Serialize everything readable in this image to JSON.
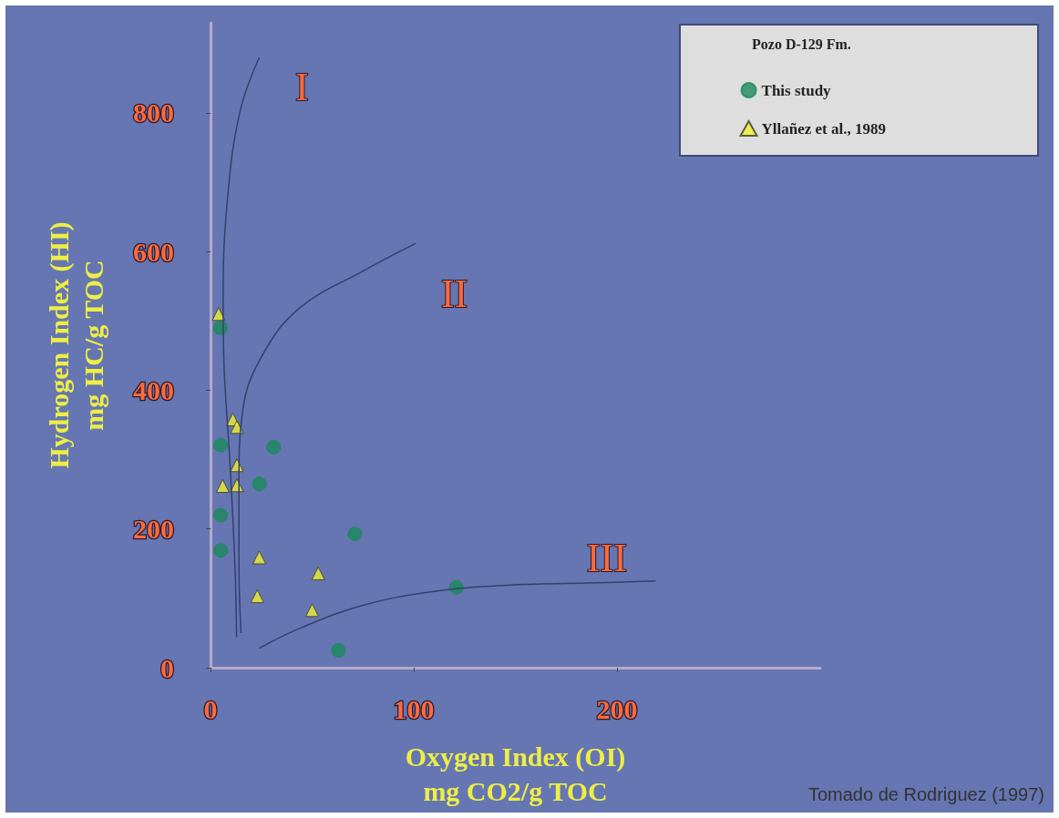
{
  "chart_data": {
    "type": "scatter",
    "xlabel": "Oxygen Index (OI)\nmg CO2/g TOC",
    "ylabel": "Hydrogen Index (HI)\nmg HC/g TOC",
    "legend_title": "Pozo D-129 Fm.",
    "legend": "top right",
    "grid": false,
    "xlim": [
      0,
      300
    ],
    "xticks": [
      0,
      100,
      200
    ],
    "ylim": [
      0,
      930
    ],
    "yticks": [
      0,
      200,
      400,
      600,
      800
    ],
    "series": [
      {
        "name": "This study",
        "color": "#1a8a5a",
        "marker": "circle",
        "x": [
          4.9,
          5,
          31,
          24,
          5,
          5,
          71,
          121,
          63
        ],
        "values": [
          490,
          321,
          318,
          265,
          220,
          169,
          193,
          116,
          25
        ]
      },
      {
        "name": "Yllañez et al., 1989",
        "color": "#f0f030",
        "marker": "triangle",
        "x": [
          4,
          11,
          13,
          13,
          6,
          13,
          24,
          23,
          53,
          50
        ],
        "values": [
          510,
          358,
          347,
          292,
          262,
          263,
          159,
          103,
          136,
          83
        ]
      },
      {
        "type": "line",
        "color": "#34406e",
        "marker": "none",
        "x": [
          24,
          14.6,
          8.4,
          6.2,
          6.6,
          9.3,
          12,
          12.8
        ],
        "values": [
          880,
          803,
          678,
          532,
          440,
          308,
          149,
          44
        ]
      },
      {
        "type": "line",
        "color": "#34406e",
        "marker": "none",
        "x": [
          101,
          75,
          44,
          26,
          16,
          14,
          14,
          15
        ],
        "values": [
          612,
          572,
          519,
          453,
          374,
          268,
          149,
          50
        ]
      },
      {
        "type": "line",
        "color": "#34406e",
        "marker": "none",
        "x": [
          24,
          44,
          75,
          110,
          146,
          185,
          219
        ],
        "values": [
          28,
          57,
          90,
          110,
          119,
          122,
          125
        ]
      }
    ],
    "annotations": [
      "I",
      "II",
      "III",
      "Tomado de Rodriguez (1997)"
    ]
  }
}
